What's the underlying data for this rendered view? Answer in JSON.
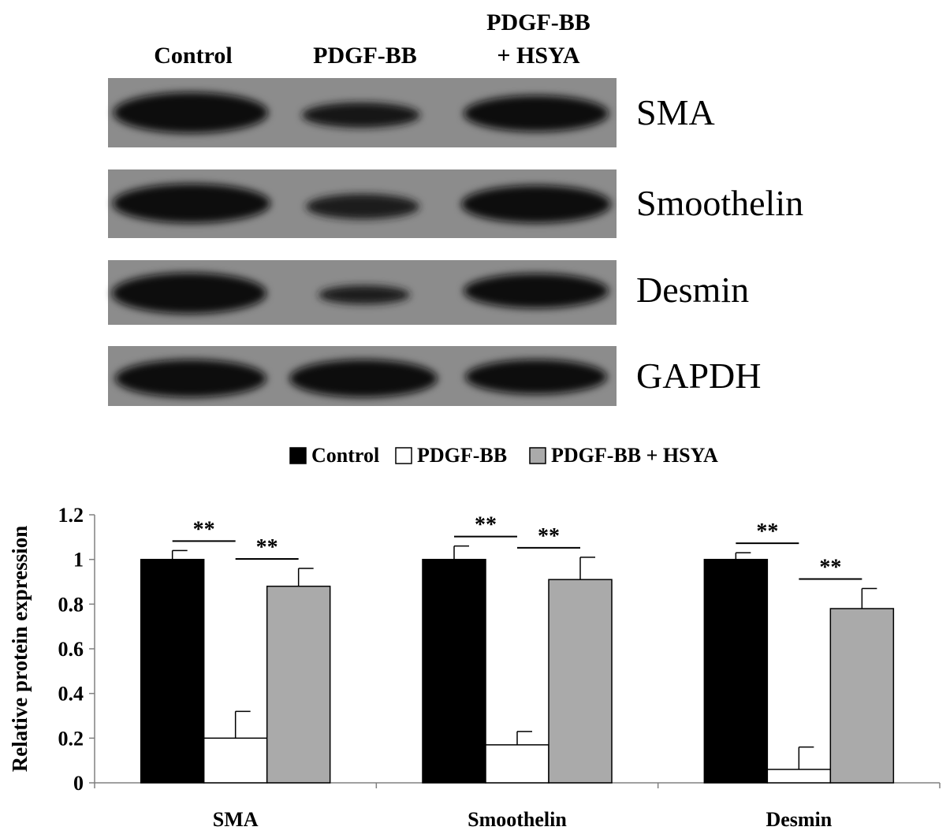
{
  "blot": {
    "lanes": [
      {
        "line1": "Control",
        "line2": ""
      },
      {
        "line1": "PDGF-BB",
        "line2": ""
      },
      {
        "line1": "PDGF-BB",
        "line2": "+ HSYA"
      }
    ],
    "proteins": [
      "SMA",
      "Smoothelin",
      "Desmin",
      "GAPDH"
    ]
  },
  "chart_data": {
    "type": "bar",
    "categories": [
      "SMA",
      "Smoothelin",
      "Desmin"
    ],
    "series": [
      {
        "name": "Control",
        "values": [
          1.0,
          1.0,
          1.0
        ],
        "errors": [
          0.04,
          0.06,
          0.03
        ],
        "color": "#000000"
      },
      {
        "name": "PDGF-BB",
        "values": [
          0.2,
          0.17,
          0.06
        ],
        "errors": [
          0.12,
          0.06,
          0.1
        ],
        "color": "#ffffff"
      },
      {
        "name": "PDGF-BB + HSYA",
        "values": [
          0.88,
          0.91,
          0.78
        ],
        "errors": [
          0.08,
          0.1,
          0.09
        ],
        "color": "#aaaaaa"
      }
    ],
    "ylabel": "Relative protein expression",
    "ylim": [
      0,
      1.2
    ],
    "yticks": [
      "0",
      "0.2",
      "0.4",
      "0.6",
      "0.8",
      "1",
      "1.2"
    ],
    "legend_position": "top",
    "significance": "**",
    "grid": false
  }
}
